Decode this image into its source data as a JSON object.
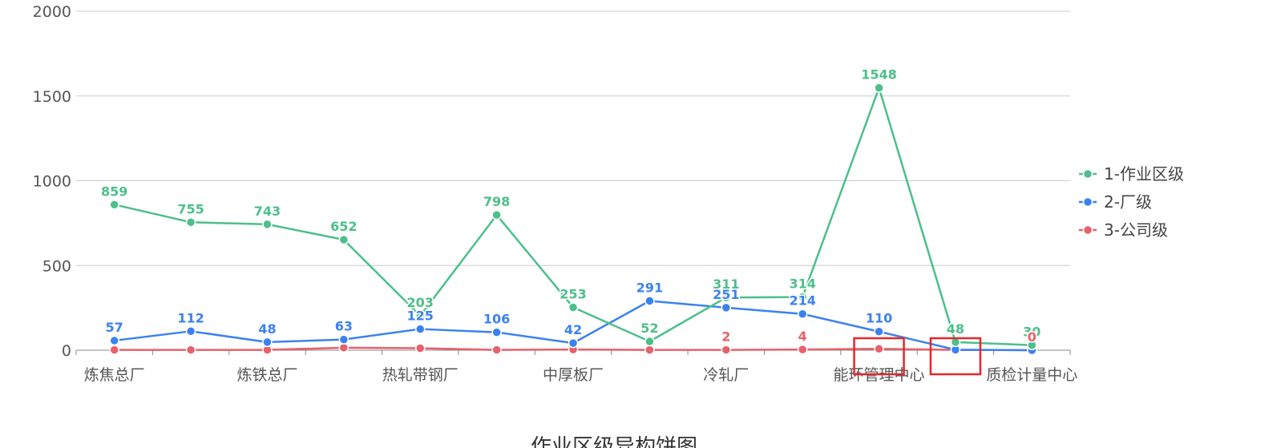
{
  "chart_data": {
    "type": "line",
    "title": "作业区级异构饼图",
    "categories": [
      "炼焦总厂",
      "",
      "炼铁总厂",
      "",
      "热轧带钢厂",
      "",
      "中厚板厂",
      "",
      "冷轧厂",
      "",
      "能环管理中心",
      "",
      "质检计量中心"
    ],
    "ylim": [
      0,
      2000
    ],
    "yticks": [
      "0",
      "500",
      "1000",
      "1500",
      "2000"
    ],
    "grid": true,
    "legend_position": "right",
    "series": [
      {
        "name": "1-作业区级",
        "color": "#4cbf8a",
        "values": [
          859,
          755,
          743,
          652,
          203,
          798,
          253,
          52,
          311,
          314,
          1548,
          48,
          30
        ],
        "labels": [
          "859",
          "755",
          "743",
          "652",
          "203",
          "798",
          "253",
          "52",
          "311",
          "314",
          "1548",
          "48",
          "30"
        ]
      },
      {
        "name": "2-厂级",
        "color": "#3b82f0",
        "values": [
          57,
          112,
          48,
          63,
          125,
          106,
          42,
          291,
          251,
          214,
          110,
          3,
          0
        ],
        "labels": [
          "57",
          "112",
          "48",
          "63",
          "125",
          "106",
          "42",
          "291",
          "251",
          "214",
          "110",
          "",
          ""
        ]
      },
      {
        "name": "3-公司级",
        "color": "#e8606a",
        "values": [
          2,
          2,
          2,
          15,
          12,
          2,
          4,
          2,
          2,
          4,
          8,
          2,
          0
        ],
        "labels": [
          "",
          "",
          "",
          "",
          "",
          "",
          "",
          "",
          "2",
          "4",
          "",
          "",
          "0"
        ]
      }
    ],
    "annotations": [
      {
        "type": "highlight-box",
        "category_index": 10,
        "color": "#e8252e"
      },
      {
        "type": "highlight-box",
        "category_index": 11,
        "color": "#e8252e"
      }
    ]
  }
}
